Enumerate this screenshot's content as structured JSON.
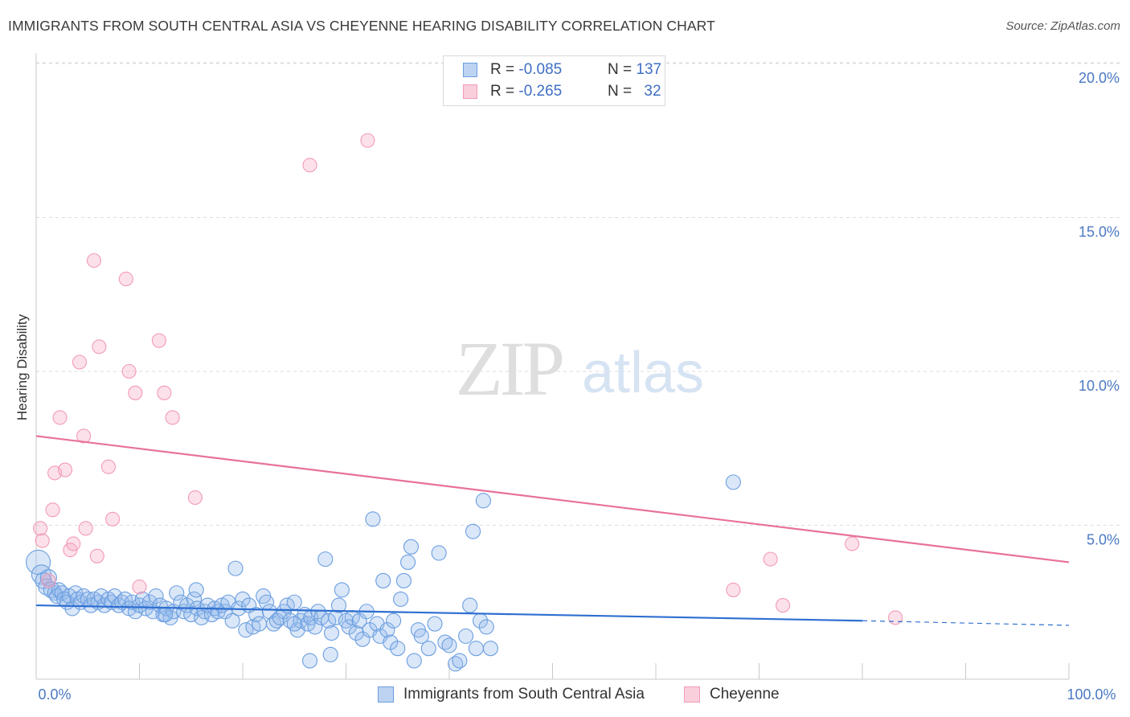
{
  "header": {
    "title": "IMMIGRANTS FROM SOUTH CENTRAL ASIA VS CHEYENNE HEARING DISABILITY CORRELATION CHART",
    "source": "Source: ZipAtlas.com"
  },
  "watermark": {
    "zip": "ZIP",
    "atlas": "atlas"
  },
  "legend": {
    "rows": [
      {
        "r_label": "R = ",
        "r_value": "-0.085",
        "n_label": "N = ",
        "n_value": "137",
        "color": "#6b9ee0"
      },
      {
        "r_label": "R = ",
        "r_value": "-0.265",
        "n_label": "N = ",
        "n_value": "32",
        "color": "#f29bb6"
      }
    ]
  },
  "chart_data": {
    "type": "scatter",
    "title": "IMMIGRANTS FROM SOUTH CENTRAL ASIA VS CHEYENNE HEARING DISABILITY CORRELATION CHART",
    "xlabel": "",
    "ylabel": "Hearing Disability",
    "xlim": [
      0,
      100
    ],
    "ylim": [
      0,
      20.5
    ],
    "x_tick_labels": [
      "0.0%",
      "100.0%"
    ],
    "y_ticks": [
      {
        "value": 5,
        "label": "5.0%"
      },
      {
        "value": 10,
        "label": "10.0%"
      },
      {
        "value": 15,
        "label": "15.0%"
      },
      {
        "value": 20,
        "label": "20.0%"
      }
    ],
    "grid": true,
    "legend_position": "top-center",
    "series": [
      {
        "name": "Immigrants from South Central Asia",
        "color": "#6b9ee0",
        "trend": {
          "x0": 0,
          "y0": 2.4,
          "x1": 80,
          "y1": 1.9,
          "dashed_to_x": 100,
          "dashed_to_y": 1.75,
          "color": "#2e6fd0"
        },
        "points": [
          [
            0.2,
            3.8
          ],
          [
            0.5,
            3.4
          ],
          [
            0.7,
            3.2
          ],
          [
            1.0,
            3.0
          ],
          [
            1.2,
            3.3
          ],
          [
            1.5,
            2.9
          ],
          [
            1.8,
            2.8
          ],
          [
            2.0,
            2.7
          ],
          [
            2.2,
            2.9
          ],
          [
            2.5,
            2.8
          ],
          [
            2.7,
            2.6
          ],
          [
            3.0,
            2.5
          ],
          [
            3.2,
            2.7
          ],
          [
            3.5,
            2.3
          ],
          [
            3.8,
            2.8
          ],
          [
            4.0,
            2.6
          ],
          [
            4.3,
            2.5
          ],
          [
            4.6,
            2.7
          ],
          [
            5.0,
            2.6
          ],
          [
            5.3,
            2.4
          ],
          [
            5.6,
            2.6
          ],
          [
            6.0,
            2.5
          ],
          [
            6.3,
            2.7
          ],
          [
            6.6,
            2.4
          ],
          [
            7.0,
            2.6
          ],
          [
            7.3,
            2.5
          ],
          [
            7.6,
            2.7
          ],
          [
            8.0,
            2.4
          ],
          [
            8.3,
            2.5
          ],
          [
            8.6,
            2.6
          ],
          [
            9.0,
            2.3
          ],
          [
            9.3,
            2.5
          ],
          [
            9.6,
            2.2
          ],
          [
            10.0,
            2.4
          ],
          [
            10.3,
            2.6
          ],
          [
            10.6,
            2.3
          ],
          [
            11.0,
            2.5
          ],
          [
            11.3,
            2.2
          ],
          [
            11.6,
            2.7
          ],
          [
            12.0,
            2.4
          ],
          [
            12.3,
            2.1
          ],
          [
            12.6,
            2.3
          ],
          [
            13.0,
            2.0
          ],
          [
            13.3,
            2.2
          ],
          [
            13.6,
            2.8
          ],
          [
            14.0,
            2.5
          ],
          [
            14.3,
            2.2
          ],
          [
            14.6,
            2.4
          ],
          [
            15.0,
            2.1
          ],
          [
            15.3,
            2.6
          ],
          [
            15.6,
            2.3
          ],
          [
            16.0,
            2.0
          ],
          [
            16.3,
            2.2
          ],
          [
            16.6,
            2.4
          ],
          [
            17.0,
            2.1
          ],
          [
            17.3,
            2.3
          ],
          [
            17.6,
            2.2
          ],
          [
            18.0,
            2.4
          ],
          [
            18.3,
            2.2
          ],
          [
            18.6,
            2.5
          ],
          [
            19.0,
            1.9
          ],
          [
            19.3,
            3.6
          ],
          [
            19.6,
            2.3
          ],
          [
            20.0,
            2.6
          ],
          [
            20.3,
            1.6
          ],
          [
            20.6,
            2.4
          ],
          [
            21.0,
            1.7
          ],
          [
            21.3,
            2.1
          ],
          [
            21.6,
            1.8
          ],
          [
            22.0,
            2.7
          ],
          [
            22.3,
            2.5
          ],
          [
            22.6,
            2.2
          ],
          [
            23.0,
            1.8
          ],
          [
            23.3,
            1.9
          ],
          [
            23.6,
            2.0
          ],
          [
            24.0,
            2.2
          ],
          [
            24.3,
            2.4
          ],
          [
            24.6,
            1.9
          ],
          [
            25.0,
            2.5
          ],
          [
            25.3,
            1.6
          ],
          [
            25.6,
            1.9
          ],
          [
            26.0,
            2.1
          ],
          [
            26.3,
            1.8
          ],
          [
            26.6,
            2.0
          ],
          [
            27.0,
            1.7
          ],
          [
            27.3,
            2.2
          ],
          [
            27.6,
            2.0
          ],
          [
            28.0,
            3.9
          ],
          [
            28.3,
            1.9
          ],
          [
            28.6,
            1.5
          ],
          [
            29.0,
            2.0
          ],
          [
            29.3,
            2.4
          ],
          [
            29.6,
            2.9
          ],
          [
            30.0,
            1.9
          ],
          [
            30.3,
            1.7
          ],
          [
            30.6,
            2.0
          ],
          [
            31.0,
            1.5
          ],
          [
            31.3,
            1.9
          ],
          [
            31.6,
            1.3
          ],
          [
            32.0,
            2.2
          ],
          [
            32.3,
            1.6
          ],
          [
            32.6,
            5.2
          ],
          [
            33.0,
            1.8
          ],
          [
            33.3,
            1.4
          ],
          [
            33.6,
            3.2
          ],
          [
            34.0,
            1.6
          ],
          [
            34.3,
            1.2
          ],
          [
            34.6,
            1.9
          ],
          [
            35.0,
            1.0
          ],
          [
            35.3,
            2.6
          ],
          [
            35.6,
            3.2
          ],
          [
            36.0,
            3.8
          ],
          [
            36.3,
            4.3
          ],
          [
            36.6,
            0.6
          ],
          [
            37.0,
            1.6
          ],
          [
            37.3,
            1.4
          ],
          [
            38.0,
            1.0
          ],
          [
            38.6,
            1.8
          ],
          [
            39.0,
            4.1
          ],
          [
            39.6,
            1.2
          ],
          [
            40.0,
            1.1
          ],
          [
            40.6,
            0.5
          ],
          [
            41.0,
            0.6
          ],
          [
            41.6,
            1.4
          ],
          [
            42.0,
            2.4
          ],
          [
            42.3,
            4.8
          ],
          [
            42.6,
            1.0
          ],
          [
            43.0,
            1.9
          ],
          [
            43.3,
            5.8
          ],
          [
            43.6,
            1.7
          ],
          [
            44.0,
            1.0
          ],
          [
            15.5,
            2.9
          ],
          [
            26.5,
            0.6
          ],
          [
            28.5,
            0.8
          ],
          [
            12.5,
            2.1
          ],
          [
            25.0,
            1.8
          ],
          [
            67.5,
            6.4
          ]
        ],
        "point_sizes": "varies"
      },
      {
        "name": "Cheyenne",
        "color": "#f29bb6",
        "trend": {
          "x0": 0,
          "y0": 7.9,
          "x1": 100,
          "y1": 3.8,
          "color": "#e8719b"
        },
        "points": [
          [
            0.4,
            4.9
          ],
          [
            0.6,
            4.5
          ],
          [
            1.2,
            3.2
          ],
          [
            1.6,
            5.5
          ],
          [
            1.8,
            6.7
          ],
          [
            2.3,
            8.5
          ],
          [
            2.8,
            6.8
          ],
          [
            3.3,
            4.2
          ],
          [
            3.6,
            4.4
          ],
          [
            4.2,
            10.3
          ],
          [
            4.6,
            7.9
          ],
          [
            4.8,
            4.9
          ],
          [
            5.6,
            13.6
          ],
          [
            5.9,
            4.0
          ],
          [
            6.1,
            10.8
          ],
          [
            7.0,
            6.9
          ],
          [
            7.4,
            5.2
          ],
          [
            8.7,
            13.0
          ],
          [
            9.0,
            10.0
          ],
          [
            9.6,
            9.3
          ],
          [
            10.0,
            3.0
          ],
          [
            11.9,
            11.0
          ],
          [
            12.4,
            9.3
          ],
          [
            13.2,
            8.5
          ],
          [
            15.4,
            5.9
          ],
          [
            26.5,
            16.7
          ],
          [
            32.1,
            17.5
          ],
          [
            67.5,
            2.9
          ],
          [
            71.1,
            3.9
          ],
          [
            72.3,
            2.4
          ],
          [
            79.0,
            4.4
          ],
          [
            83.2,
            2.0
          ]
        ]
      }
    ]
  },
  "bottom_legend": {
    "items": [
      {
        "label": "Immigrants from South Central Asia",
        "color": "#6b9ee0"
      },
      {
        "label": "Cheyenne",
        "color": "#f29bb6"
      }
    ]
  }
}
